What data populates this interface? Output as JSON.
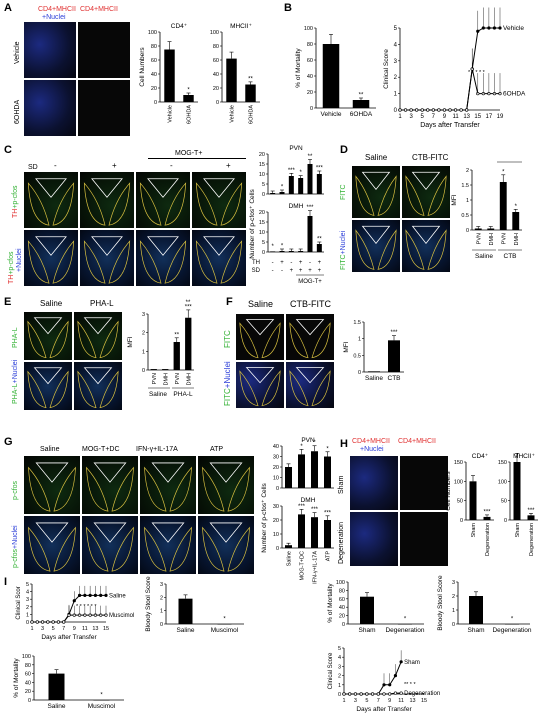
{
  "panels": {
    "A": {
      "label": "A",
      "col1_title": "CD4+MHCII",
      "col1_title_2": "+Nuclei",
      "col2_title": "CD4+MHCII",
      "row1": "Vehicle",
      "row2": "6OHDA",
      "charts": [
        {
          "title": "CD4⁺",
          "ylabel": "Cell Numbers",
          "categories": [
            "Vehicle",
            "6OHDA"
          ],
          "values": [
            75,
            10
          ],
          "ylim": [
            0,
            100
          ],
          "yticks": [
            "0",
            "20",
            "40",
            "60",
            "80",
            "100"
          ],
          "sig": [
            "",
            "*"
          ]
        },
        {
          "title": "MHCII⁺",
          "categories": [
            "Vehicle",
            "6OHDA"
          ],
          "values": [
            62,
            25
          ],
          "ylim": [
            0,
            100
          ],
          "yticks": [
            "0",
            "20",
            "40",
            "60",
            "80",
            "100"
          ],
          "sig": [
            "",
            "**"
          ]
        }
      ]
    },
    "B": {
      "label": "B",
      "bar": {
        "ylabel": "% of Mortality",
        "categories": [
          "Vehicle",
          "6OHDA"
        ],
        "values": [
          80,
          10
        ],
        "ylim": [
          0,
          100
        ],
        "yticks": [
          "0",
          "20",
          "40",
          "60",
          "80",
          "100"
        ],
        "sig": [
          "",
          "**"
        ]
      },
      "line": {
        "ylabel": "Clinical Score",
        "xlabel": "Days after Transfer",
        "xticks": [
          "1",
          "3",
          "5",
          "7",
          "9",
          "11",
          "13",
          "15",
          "17",
          "19"
        ],
        "yticks": [
          "0",
          "1",
          "2",
          "3",
          "4",
          "5"
        ],
        "series": [
          {
            "name": "Vehicle",
            "x": [
              1,
              2,
              3,
              4,
              5,
              6,
              7,
              8,
              9,
              10,
              11,
              12,
              13,
              14,
              15,
              16,
              17,
              18,
              19
            ],
            "y": [
              0,
              0,
              0,
              0,
              0,
              0,
              0,
              0,
              0,
              0,
              0,
              0,
              0,
              2.5,
              4.8,
              5,
              5,
              5,
              5
            ]
          },
          {
            "name": "6OHDA",
            "x": [
              1,
              2,
              3,
              4,
              5,
              6,
              7,
              8,
              9,
              10,
              11,
              12,
              13,
              14,
              15,
              16,
              17,
              18,
              19
            ],
            "y": [
              0,
              0,
              0,
              0,
              0,
              0,
              0,
              0,
              0,
              0,
              0,
              0,
              0,
              2.5,
              1,
              1,
              1,
              1,
              1
            ]
          }
        ],
        "stars": "* * * * *"
      }
    },
    "C": {
      "label": "C",
      "sd_label": "SD",
      "sd_values": [
        "-",
        "+",
        "-",
        "+"
      ],
      "mog_label": "MOG-T+",
      "row1_a": "TH",
      "row1_b": "+p-cfos",
      "row2_a": "TH",
      "row2_b": "+p-cfos",
      "row2_c": "+Nuclei",
      "charts": [
        {
          "title": "PVN",
          "values": [
            0.5,
            1,
            9,
            8,
            15,
            10
          ],
          "yticks": [
            "0",
            "5",
            "10",
            "15",
            "20"
          ],
          "sig": [
            "",
            "*",
            "***",
            "*",
            "**",
            "***"
          ]
        },
        {
          "title": "DMH",
          "values": [
            0.3,
            0.5,
            0.5,
            0.5,
            18,
            4
          ],
          "yticks": [
            "0",
            "5",
            "10",
            "15",
            "20"
          ],
          "sig": [
            "*",
            "*",
            "",
            "",
            "***",
            "**"
          ]
        }
      ],
      "ylabel": "Number of p-cfos⁺ Cells",
      "th_label": "TH",
      "th_values": [
        "-",
        "+",
        "-",
        "+",
        "-",
        "+"
      ],
      "sd2_label": "SD",
      "sd2_values": [
        "-",
        "-",
        "+",
        "+",
        "+",
        "+"
      ],
      "mog2_label": "MOG-T+"
    },
    "D": {
      "label": "D",
      "col1": "Saline",
      "col2": "CTB-FITC",
      "row1": "FITC",
      "row2_a": "FITC",
      "row2_b": "+Nuclei",
      "chart": {
        "ylabel": "MFI",
        "categories": [
          "PVN",
          "DMH",
          "PVN",
          "DMH"
        ],
        "values": [
          0.05,
          0.05,
          1.6,
          0.6
        ],
        "yticks": [
          "0",
          "0.5",
          "1",
          "1.5",
          "2"
        ],
        "sig": [
          "",
          "",
          "*",
          "*"
        ],
        "groups": [
          "Saline",
          "CTB"
        ]
      }
    },
    "E": {
      "label": "E",
      "col1": "Saline",
      "col2": "PHA-L",
      "row1": "PHA-L",
      "row2_a": "PHA-L",
      "row2_b": "+Nuclei",
      "chart": {
        "ylabel": "MFI",
        "categories": [
          "PVN",
          "DMH",
          "PVN",
          "DMH"
        ],
        "values": [
          0.05,
          0.05,
          1.5,
          2.8
        ],
        "yticks": [
          "0",
          "1",
          "2",
          "3"
        ],
        "sig": [
          "",
          "",
          "**",
          "***"
        ],
        "top_sig": "**",
        "groups": [
          "Saline",
          "PHA-L"
        ]
      }
    },
    "F": {
      "label": "F",
      "col1": "Saline",
      "col2": "CTB-FITC",
      "row1": "FITC",
      "row2_a": "FITC",
      "row2_b": "+Nuclei",
      "chart": {
        "ylabel": "MFI",
        "categories": [
          "Saline",
          "CTB"
        ],
        "values": [
          0.02,
          0.95
        ],
        "yticks": [
          "0",
          "0.5",
          "1",
          "1.5"
        ],
        "sig": [
          "",
          "***"
        ]
      }
    },
    "G": {
      "label": "G",
      "cols": [
        "Saline",
        "MOG-T+DC",
        "IFN-γ+IL-17A",
        "ATP"
      ],
      "row1": "p-cfos",
      "row2_a": "p-cfos",
      "row2_b": "+Nuclei",
      "charts": [
        {
          "title": "PVN",
          "values": [
            20,
            32,
            35,
            30
          ],
          "yticks": [
            "0",
            "10",
            "20",
            "30",
            "40"
          ],
          "sig": [
            "",
            "*",
            "*",
            "*"
          ]
        },
        {
          "title": "DMH",
          "values": [
            2,
            24,
            22,
            20
          ],
          "yticks": [
            "0",
            "10",
            "20",
            "30"
          ],
          "sig": [
            "",
            "***",
            "***",
            "***"
          ]
        }
      ],
      "ylabel": "Number of p-cfos⁺ Cells",
      "categories": [
        "Saline",
        "MOG-T+DC",
        "IFN-γ+IL-17A",
        "ATP"
      ]
    },
    "H": {
      "label": "H",
      "col1_title": "CD4+MHCII",
      "col1_title_2": "+Nuclei",
      "col2_title": "CD4+MHCII",
      "row1": "Sham",
      "row2": "Degeneration",
      "charts": [
        {
          "title": "CD4⁺",
          "ylabel": "Cell Numbers",
          "categories": [
            "Sham",
            "Degeneration"
          ],
          "values": [
            100,
            8
          ],
          "yticks": [
            "0",
            "50",
            "100",
            "150"
          ],
          "sig": [
            "",
            "***"
          ]
        },
        {
          "title": "MHCII⁺",
          "categories": [
            "Sham",
            "Degeneration"
          ],
          "values": [
            150,
            12
          ],
          "yticks": [
            "0",
            "50",
            "100",
            "150"
          ],
          "sig": [
            "",
            "***"
          ]
        }
      ],
      "mortality": {
        "ylabel": "% of Mortality",
        "categories": [
          "Sham",
          "Degeneration"
        ],
        "values": [
          65,
          0
        ],
        "yticks": [
          "0",
          "20",
          "40",
          "60",
          "80",
          "100"
        ],
        "sig": [
          "",
          "*"
        ]
      },
      "stool": {
        "ylabel": "Bloody Stool Score",
        "categories": [
          "Sham",
          "Degeneration"
        ],
        "values": [
          2,
          0
        ],
        "yticks": [
          "0",
          "1",
          "2",
          "3"
        ],
        "sig": [
          "",
          "*"
        ]
      },
      "line": {
        "ylabel": "Clinical Score",
        "xlabel": "Days after Transfer",
        "xticks": [
          "1",
          "3",
          "5",
          "7",
          "9",
          "11",
          "13",
          "15"
        ],
        "yticks": [
          "0",
          "1",
          "2",
          "3",
          "4",
          "5"
        ],
        "series": [
          {
            "name": "Sham",
            "x": [
              1,
              2,
              3,
              4,
              5,
              6,
              7,
              8,
              9,
              10,
              11
            ],
            "y": [
              0,
              0,
              0,
              0,
              0,
              0,
              0,
              1,
              1,
              2,
              3.5
            ]
          },
          {
            "name": "Degeneration",
            "x": [
              1,
              2,
              3,
              4,
              5,
              6,
              7,
              8,
              9,
              10,
              11
            ],
            "y": [
              0,
              0,
              0,
              0,
              0,
              0,
              0,
              0,
              0,
              0.1,
              0.1
            ]
          }
        ],
        "stars": "** * *"
      }
    },
    "I": {
      "label": "I",
      "line": {
        "ylabel": "Clinical Scor",
        "xlabel": "Days after Transfer",
        "xticks": [
          "1",
          "3",
          "5",
          "7",
          "9",
          "11",
          "13",
          "15"
        ],
        "yticks": [
          "0",
          "1",
          "2",
          "3",
          "4",
          "5"
        ],
        "series": [
          {
            "name": "Saline",
            "x": [
              1,
              2,
              3,
              4,
              5,
              6,
              7,
              8,
              9,
              10,
              11,
              12,
              13,
              14,
              15
            ],
            "y": [
              0,
              0,
              0,
              0,
              0,
              0,
              0,
              1,
              2.8,
              3.5,
              3.5,
              3.5,
              3.5,
              3.5,
              3.5
            ]
          },
          {
            "name": "Muscimol",
            "x": [
              1,
              2,
              3,
              4,
              5,
              6,
              7,
              8,
              9,
              10,
              11,
              12,
              13,
              14,
              15
            ],
            "y": [
              0,
              0,
              0,
              0,
              0,
              0,
              0,
              0.9,
              0.9,
              0.9,
              0.9,
              0.9,
              0.9,
              0.9,
              0.9
            ]
          }
        ],
        "stars": "* * * * * *"
      },
      "stool": {
        "ylabel": "Bloody Stool Score",
        "categories": [
          "Saline",
          "Muscimol"
        ],
        "values": [
          1.9,
          0
        ],
        "yticks": [
          "0",
          "1",
          "2",
          "3"
        ],
        "sig": [
          "",
          "*"
        ]
      },
      "mortality": {
        "ylabel": "% of Mortality",
        "categories": [
          "Saline",
          "Muscimol"
        ],
        "values": [
          60,
          0
        ],
        "yticks": [
          "0",
          "20",
          "40",
          "60",
          "80",
          "100"
        ],
        "sig": [
          "",
          "*"
        ]
      }
    }
  },
  "colors": {
    "red": "#e03030",
    "green": "#2fb030",
    "blue": "#2a3dd8",
    "bar": "#000000",
    "outline_yellow": "#d8c040",
    "outline_white": "#ffffff"
  }
}
